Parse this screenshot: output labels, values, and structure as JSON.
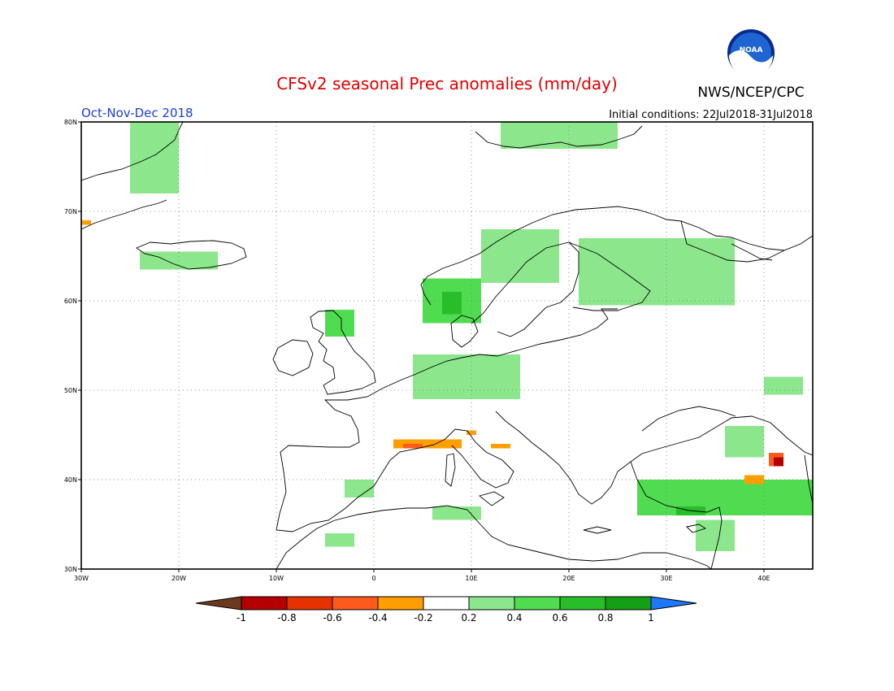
{
  "header": {
    "title": "CFSv2 seasonal Prec anomalies (mm/day)",
    "period": "Oct-Nov-Dec 2018",
    "initial_conditions": "Initial conditions: 22Jul2018-31Jul2018",
    "agency": "NWS/NCEP/CPC",
    "logo_text": "NOAA"
  },
  "map": {
    "region": "Europe",
    "lon_range": [
      -30,
      45
    ],
    "lat_range": [
      30,
      80
    ],
    "lat_ticks": [
      "80N",
      "70N",
      "60N",
      "50N",
      "40N",
      "30N"
    ],
    "lon_ticks": [
      "30W",
      "20W",
      "10W",
      "0",
      "10E",
      "20E",
      "30E",
      "40E"
    ],
    "grid": true
  },
  "colorbar": {
    "ticks": [
      "-1",
      "-0.8",
      "-0.6",
      "-0.4",
      "-0.2",
      "0.2",
      "0.4",
      "0.6",
      "0.8",
      "1"
    ],
    "colors": [
      "#6b3a1e",
      "#b40000",
      "#e63200",
      "#ff5a1e",
      "#ff9e00",
      "#ffffff",
      "#8ce68c",
      "#50dc50",
      "#28be28",
      "#14a014",
      "#1e78ff"
    ]
  },
  "chart_data": {
    "type": "heatmap",
    "units": "mm/day",
    "anomaly_regions": [
      {
        "lon": [
          -25,
          -20
        ],
        "lat": [
          72,
          80
        ],
        "value": 0.3
      },
      {
        "lon": [
          -30,
          -29
        ],
        "lat": [
          68.5,
          69
        ],
        "value": -0.3
      },
      {
        "lon": [
          -24,
          -16
        ],
        "lat": [
          63.5,
          65.5
        ],
        "value": 0.3
      },
      {
        "lon": [
          -5,
          -2
        ],
        "lat": [
          56,
          59
        ],
        "value": 0.5
      },
      {
        "lon": [
          5,
          11
        ],
        "lat": [
          57.5,
          62.5
        ],
        "value": 0.5
      },
      {
        "lon": [
          7,
          9
        ],
        "lat": [
          58.5,
          61
        ],
        "value": 0.7
      },
      {
        "lon": [
          11,
          19
        ],
        "lat": [
          62,
          68
        ],
        "value": 0.3
      },
      {
        "lon": [
          21,
          37
        ],
        "lat": [
          59.5,
          67
        ],
        "value": 0.3
      },
      {
        "lon": [
          13,
          25
        ],
        "lat": [
          77,
          80
        ],
        "value": 0.3
      },
      {
        "lon": [
          4,
          15
        ],
        "lat": [
          49,
          54
        ],
        "value": 0.3
      },
      {
        "lon": [
          2,
          9
        ],
        "lat": [
          43.5,
          44.5
        ],
        "value": -0.3
      },
      {
        "lon": [
          3,
          5
        ],
        "lat": [
          43.5,
          44
        ],
        "value": -0.5
      },
      {
        "lon": [
          12,
          14
        ],
        "lat": [
          43.5,
          44
        ],
        "value": -0.3
      },
      {
        "lon": [
          9.5,
          10.5
        ],
        "lat": [
          45,
          45.5
        ],
        "value": -0.3
      },
      {
        "lon": [
          -3,
          0
        ],
        "lat": [
          38,
          40
        ],
        "value": 0.3
      },
      {
        "lon": [
          -5,
          -2
        ],
        "lat": [
          32.5,
          34
        ],
        "value": 0.3
      },
      {
        "lon": [
          6,
          11
        ],
        "lat": [
          35.5,
          37
        ],
        "value": 0.3
      },
      {
        "lon": [
          27,
          45
        ],
        "lat": [
          36,
          40
        ],
        "value": 0.5
      },
      {
        "lon": [
          31,
          34
        ],
        "lat": [
          36,
          37
        ],
        "value": 0.7
      },
      {
        "lon": [
          38,
          40
        ],
        "lat": [
          39.5,
          40.5
        ],
        "value": -0.3
      },
      {
        "lon": [
          40.5,
          42
        ],
        "lat": [
          41.5,
          43
        ],
        "value": -0.6
      },
      {
        "lon": [
          41,
          42
        ],
        "lat": [
          41.5,
          42.5
        ],
        "value": -0.9
      },
      {
        "lon": [
          36,
          40
        ],
        "lat": [
          42.5,
          46
        ],
        "value": 0.3
      },
      {
        "lon": [
          40,
          44
        ],
        "lat": [
          49.5,
          51.5
        ],
        "value": 0.3
      },
      {
        "lon": [
          33,
          37
        ],
        "lat": [
          32,
          35.5
        ],
        "value": 0.3
      }
    ]
  }
}
